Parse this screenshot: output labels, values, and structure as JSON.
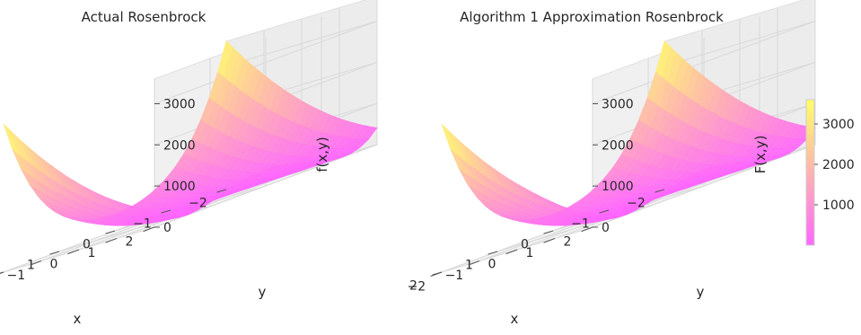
{
  "chart_data": [
    {
      "type": "surface",
      "title": "Actual Rosenbrock",
      "xlabel": "x",
      "ylabel": "y",
      "zlabel": "f(x,y)",
      "x_ticks": [
        "−2",
        "−1",
        "0",
        "1",
        "2"
      ],
      "y_ticks": [
        "−2",
        "−1",
        "0",
        "1",
        "2"
      ],
      "z_ticks": [
        "0",
        "1000",
        "2000",
        "3000"
      ],
      "xlim": [
        -2,
        2
      ],
      "ylim": [
        -2,
        2
      ],
      "zlim": [
        0,
        3600
      ],
      "function": "rosenbrock",
      "colormap": "spring",
      "grid": true
    },
    {
      "type": "surface",
      "title": "Algorithm 1 Approximation Rosenbrock",
      "xlabel": "x",
      "ylabel": "y",
      "zlabel": "F(x,y)",
      "x_ticks": [
        "−2",
        "−1",
        "0",
        "1",
        "2"
      ],
      "y_ticks": [
        "−2",
        "−1",
        "0",
        "1",
        "2"
      ],
      "z_ticks": [
        "0",
        "1000",
        "2000",
        "3000"
      ],
      "xlim": [
        -2,
        2
      ],
      "ylim": [
        -2,
        2
      ],
      "zlim": [
        0,
        3600
      ],
      "function": "rosenbrock_approximation",
      "colormap": "spring",
      "grid": true
    }
  ],
  "colorbar": {
    "ticks": [
      "1000",
      "2000",
      "3000"
    ],
    "range": [
      0,
      3600
    ],
    "colors": [
      "#ff66ff",
      "#ffb0b0",
      "#ffff66"
    ]
  }
}
